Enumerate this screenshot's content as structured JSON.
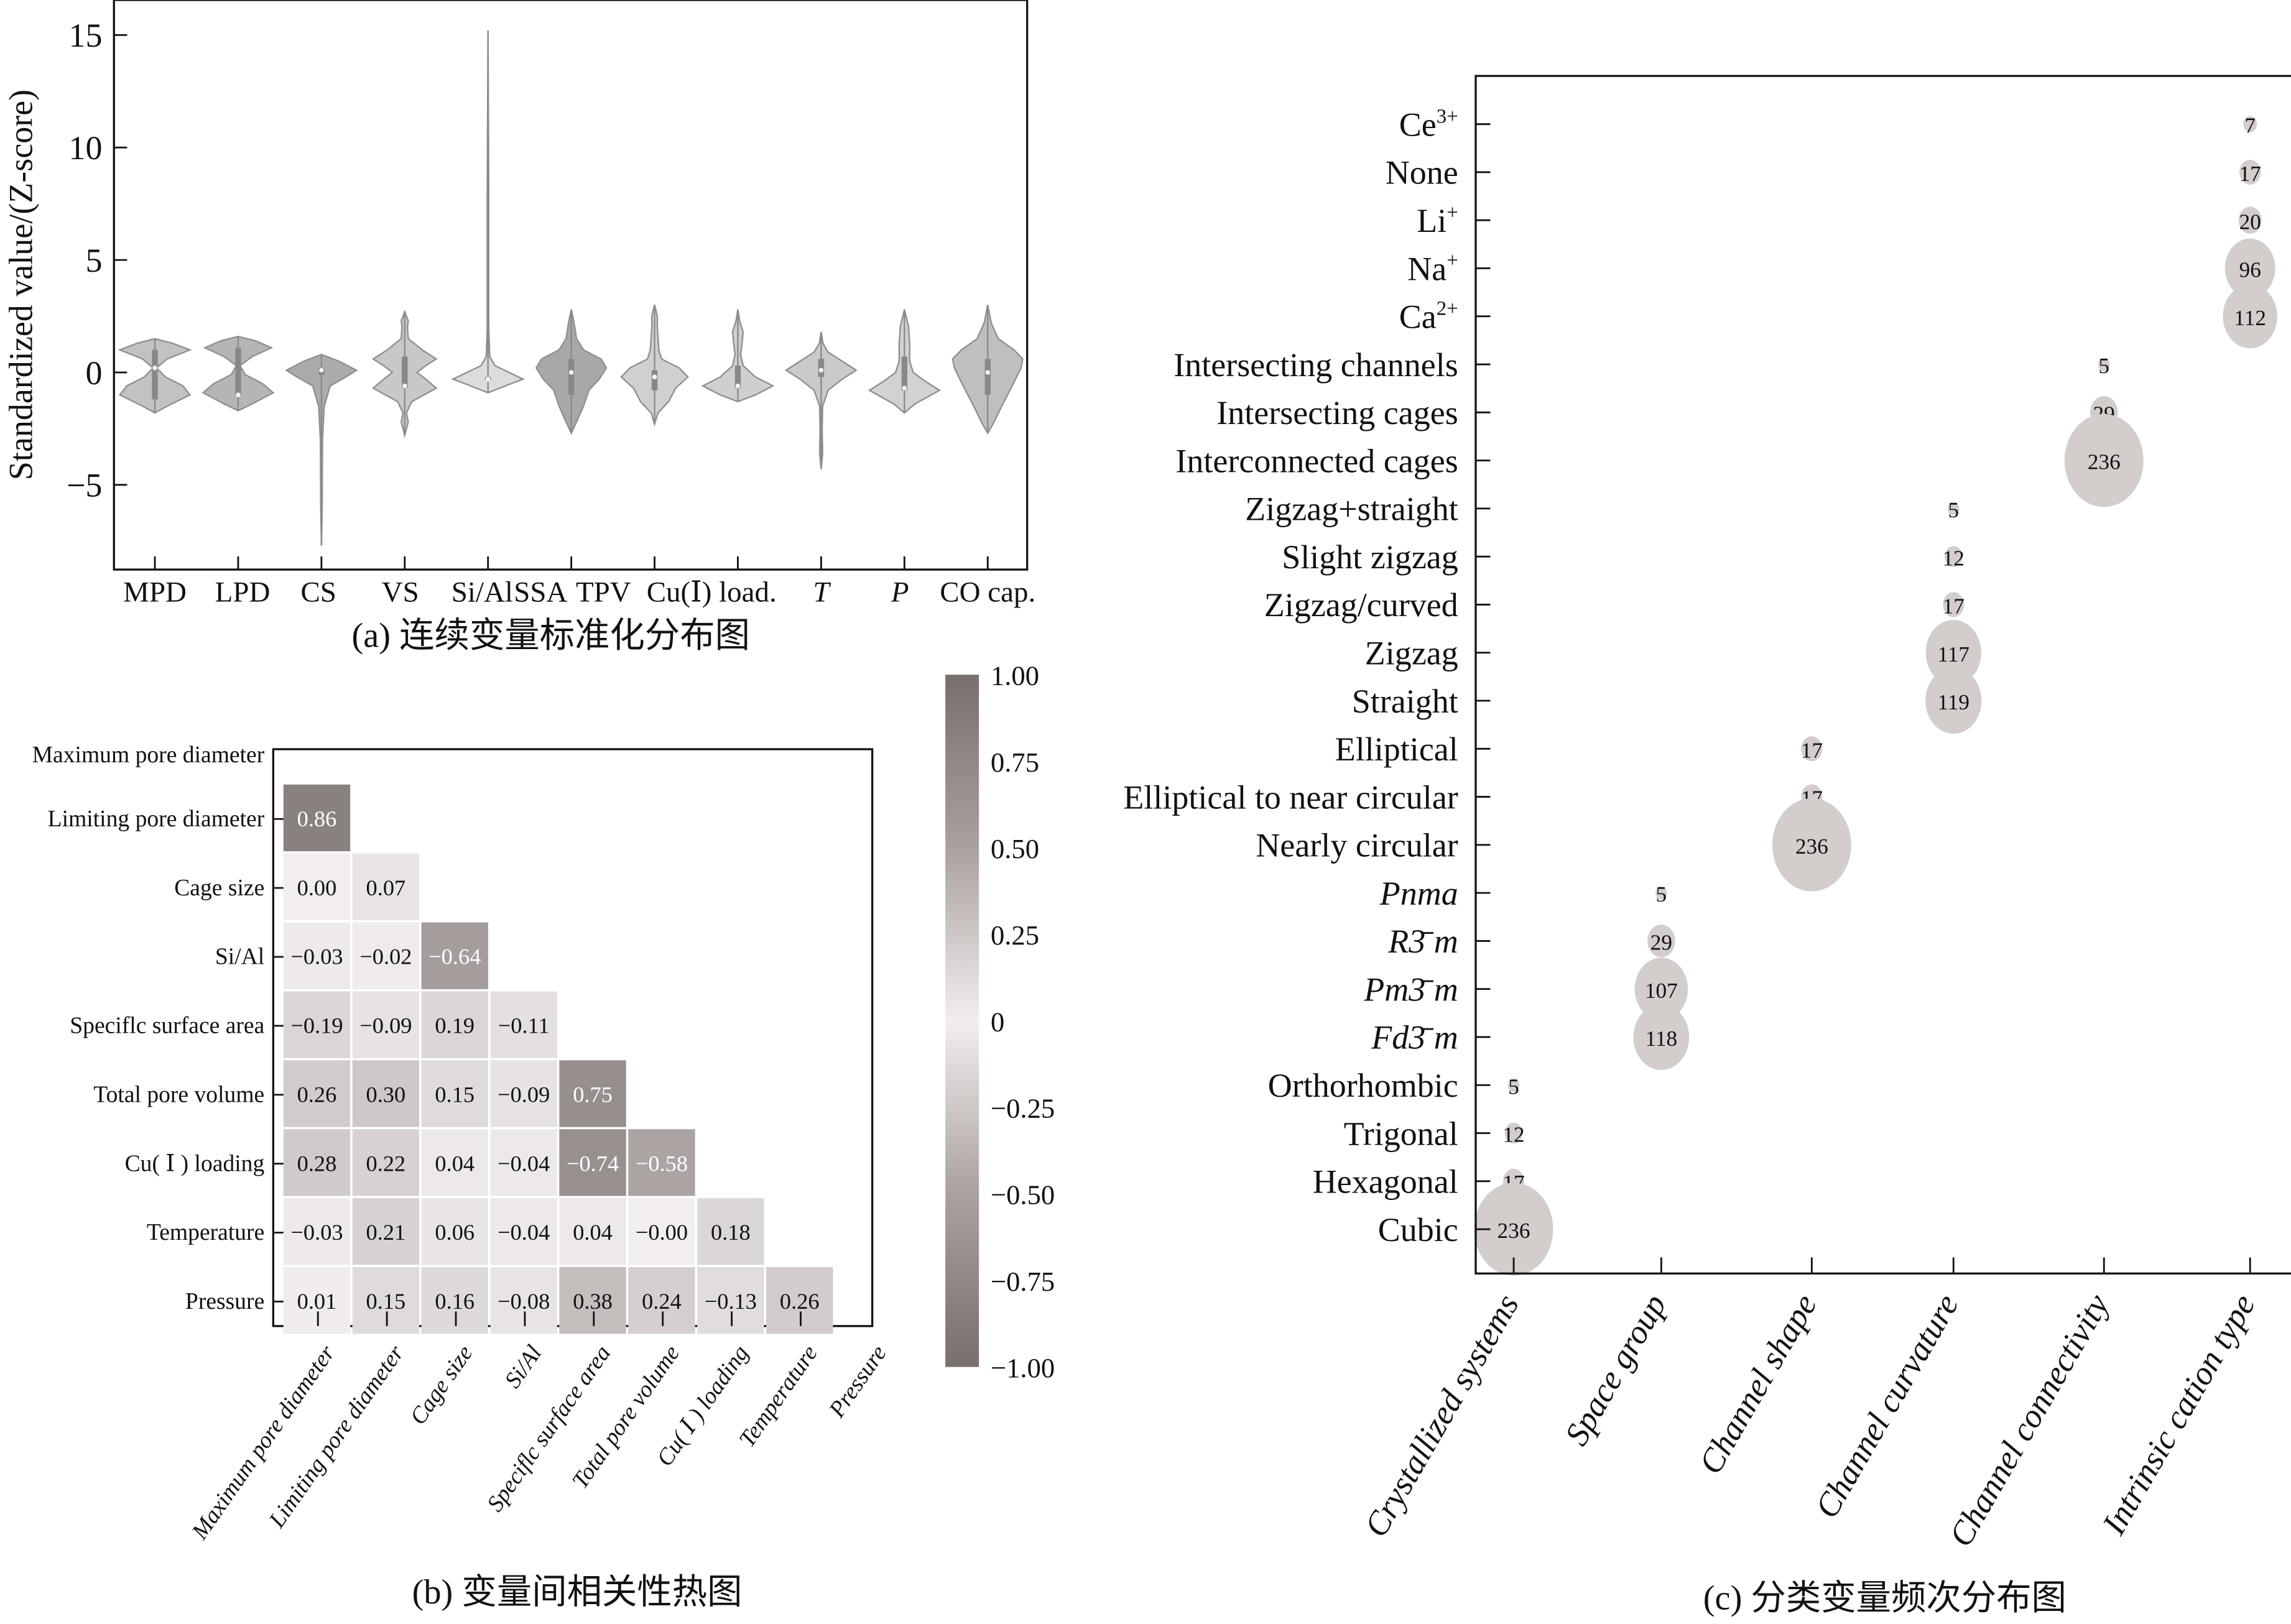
{
  "chart_data": [
    {
      "id": "a",
      "type": "violin",
      "caption": "(a) 连续变量标准化分布图",
      "ylabel": "Standardized value/(Z-score)",
      "ylim": [
        -8.5,
        16.5
      ],
      "yticks": [
        15,
        10,
        5,
        0,
        -5
      ],
      "ytick_labels": [
        "15",
        "10",
        "5",
        "0",
        "−5"
      ],
      "categories": [
        "MPD",
        "LPD",
        "CS",
        "VS",
        "Si/Al",
        "SSA",
        "TPV",
        "Cu(Ⅰ) load.",
        "T",
        "P",
        "CO cap."
      ],
      "categories_italic": [
        false,
        false,
        false,
        false,
        false,
        false,
        false,
        false,
        true,
        true,
        false
      ],
      "fill_colors": [
        "#c2c2c2",
        "#b5b5b5",
        "#ababab",
        "#c8c8c8",
        "#dcdcdc",
        "#a8a8a8",
        "#d0d0d0",
        "#cfcfcf",
        "#cacaca",
        "#d2d2d2",
        "#bfbfbf"
      ],
      "series": [
        {
          "name": "MPD",
          "min": -1.8,
          "max": 1.5,
          "median": 0.2,
          "q1": -1.2,
          "q3": 1.0,
          "profile": [
            [
              -1.8,
              0
            ],
            [
              -1.5,
              0.35
            ],
            [
              -1.0,
              1.0
            ],
            [
              -0.6,
              0.8
            ],
            [
              -0.2,
              0.3
            ],
            [
              0.2,
              0.05
            ],
            [
              0.6,
              0.35
            ],
            [
              1.0,
              1.0
            ],
            [
              1.3,
              0.5
            ],
            [
              1.5,
              0
            ]
          ]
        },
        {
          "name": "LPD",
          "min": -1.7,
          "max": 1.6,
          "median": -1.0,
          "q1": -1.0,
          "q3": 1.1,
          "profile": [
            [
              -1.7,
              0
            ],
            [
              -1.4,
              0.4
            ],
            [
              -0.9,
              1.0
            ],
            [
              -0.5,
              0.7
            ],
            [
              -0.1,
              0.2
            ],
            [
              0.3,
              0.05
            ],
            [
              0.7,
              0.4
            ],
            [
              1.1,
              0.95
            ],
            [
              1.4,
              0.5
            ],
            [
              1.6,
              0
            ]
          ]
        },
        {
          "name": "CS",
          "min": -7.7,
          "max": 0.8,
          "median": 0.1,
          "q1": -0.1,
          "q3": 0.2,
          "profile": [
            [
              -7.7,
              0
            ],
            [
              -6,
              0.02
            ],
            [
              -3,
              0.03
            ],
            [
              -1.5,
              0.08
            ],
            [
              -0.6,
              0.25
            ],
            [
              -0.2,
              0.7
            ],
            [
              0.1,
              1.0
            ],
            [
              0.5,
              0.5
            ],
            [
              0.8,
              0
            ]
          ]
        },
        {
          "name": "VS",
          "min": -2.8,
          "max": 2.7,
          "median": -0.6,
          "q1": -0.7,
          "q3": 0.7,
          "profile": [
            [
              -2.8,
              0
            ],
            [
              -2.2,
              0.1
            ],
            [
              -1.8,
              0.05
            ],
            [
              -1.3,
              0.2
            ],
            [
              -0.7,
              0.9
            ],
            [
              -0.3,
              0.6
            ],
            [
              0.0,
              0.35
            ],
            [
              0.3,
              0.6
            ],
            [
              0.6,
              0.9
            ],
            [
              1.0,
              0.5
            ],
            [
              1.5,
              0.1
            ],
            [
              2.0,
              0.08
            ],
            [
              2.3,
              0.1
            ],
            [
              2.7,
              0
            ]
          ]
        },
        {
          "name": "Si/Al",
          "min": -0.9,
          "max": 15.2,
          "median": -0.3,
          "q1": -0.35,
          "q3": -0.2,
          "profile": [
            [
              -0.9,
              0
            ],
            [
              -0.6,
              0.5
            ],
            [
              -0.3,
              1.0
            ],
            [
              0.0,
              0.6
            ],
            [
              0.3,
              0.2
            ],
            [
              0.7,
              0.05
            ],
            [
              2,
              0.02
            ],
            [
              8,
              0.02
            ],
            [
              15.2,
              0
            ]
          ]
        },
        {
          "name": "SSA",
          "min": -2.7,
          "max": 2.8,
          "median": 0.0,
          "q1": -1.0,
          "q3": 0.6,
          "profile": [
            [
              -2.7,
              0
            ],
            [
              -2.2,
              0.15
            ],
            [
              -1.5,
              0.35
            ],
            [
              -0.8,
              0.5
            ],
            [
              -0.3,
              0.8
            ],
            [
              0.2,
              1.0
            ],
            [
              0.6,
              0.85
            ],
            [
              1.0,
              0.35
            ],
            [
              1.5,
              0.15
            ],
            [
              2.2,
              0.08
            ],
            [
              2.8,
              0
            ]
          ]
        },
        {
          "name": "TPV",
          "min": -2.3,
          "max": 3.0,
          "median": -0.2,
          "q1": -0.8,
          "q3": 0.1,
          "profile": [
            [
              -2.3,
              0
            ],
            [
              -1.8,
              0.1
            ],
            [
              -1.3,
              0.4
            ],
            [
              -0.7,
              0.6
            ],
            [
              -0.2,
              0.95
            ],
            [
              0.2,
              0.7
            ],
            [
              0.6,
              0.2
            ],
            [
              1.0,
              0.12
            ],
            [
              1.5,
              0.1
            ],
            [
              2.0,
              0.08
            ],
            [
              2.5,
              0.08
            ],
            [
              3.0,
              0
            ]
          ]
        },
        {
          "name": "Cu(Ⅰ) load.",
          "min": -1.3,
          "max": 2.8,
          "median": -0.6,
          "q1": -0.7,
          "q3": 0.3,
          "profile": [
            [
              -1.3,
              0
            ],
            [
              -1.0,
              0.5
            ],
            [
              -0.6,
              1.0
            ],
            [
              -0.2,
              0.5
            ],
            [
              0.3,
              0.15
            ],
            [
              0.8,
              0.08
            ],
            [
              1.3,
              0.12
            ],
            [
              1.8,
              0.15
            ],
            [
              2.3,
              0.05
            ],
            [
              2.8,
              0
            ]
          ]
        },
        {
          "name": "T",
          "min": -4.3,
          "max": 1.8,
          "median": 0.1,
          "q1": -0.2,
          "q3": 0.6,
          "profile": [
            [
              -4.3,
              0
            ],
            [
              -3.6,
              0.04
            ],
            [
              -2.5,
              0.03
            ],
            [
              -1.5,
              0.04
            ],
            [
              -0.8,
              0.2
            ],
            [
              -0.3,
              0.6
            ],
            [
              0.1,
              1.0
            ],
            [
              0.5,
              0.6
            ],
            [
              0.9,
              0.2
            ],
            [
              1.3,
              0.05
            ],
            [
              1.8,
              0
            ]
          ]
        },
        {
          "name": "P",
          "min": -1.8,
          "max": 2.8,
          "median": -0.7,
          "q1": -0.8,
          "q3": 0.7,
          "profile": [
            [
              -1.8,
              0
            ],
            [
              -1.4,
              0.3
            ],
            [
              -0.8,
              1.0
            ],
            [
              -0.4,
              0.6
            ],
            [
              0.0,
              0.25
            ],
            [
              0.5,
              0.15
            ],
            [
              1.2,
              0.15
            ],
            [
              2.0,
              0.12
            ],
            [
              2.8,
              0
            ]
          ]
        },
        {
          "name": "CO cap.",
          "min": -2.7,
          "max": 3.0,
          "median": 0.0,
          "q1": -1.0,
          "q3": 0.6,
          "profile": [
            [
              -2.7,
              0
            ],
            [
              -2.3,
              0.15
            ],
            [
              -1.5,
              0.4
            ],
            [
              -0.6,
              0.7
            ],
            [
              0.2,
              0.95
            ],
            [
              0.6,
              1.0
            ],
            [
              1.0,
              0.75
            ],
            [
              1.5,
              0.3
            ],
            [
              2.2,
              0.1
            ],
            [
              3.0,
              0
            ]
          ]
        }
      ]
    },
    {
      "id": "b",
      "type": "heatmap",
      "caption": "(b) 变量间相关性热图",
      "labels": [
        "Maximum pore diameter",
        "Limiting pore diameter",
        "Cage size",
        "Si/Al",
        "Specific surface area",
        "Total pore volume",
        "Cu(Ⅰ) loading",
        "Temperature",
        "Pressure"
      ],
      "ylabels": [
        "Maximum pore diameter",
        "Limiting pore diameter",
        "Cage size",
        "Si/Al",
        "Speciflc surface area",
        "Total pore volume",
        "Cu( Ⅰ ) loading",
        "Temperature",
        "Pressure"
      ],
      "xlabels": [
        "Maximum pore diameter",
        "Limiting pore diameter",
        "Cage size",
        "Si/Al",
        "Speciflc surface area",
        "Total pore volume",
        "Cu( Ⅰ ) loading",
        "Temperature",
        "Pressure"
      ],
      "lower_triangle": [
        [],
        [
          0.86
        ],
        [
          0.0,
          0.07
        ],
        [
          -0.03,
          -0.02,
          -0.64
        ],
        [
          -0.19,
          -0.09,
          0.19,
          -0.11
        ],
        [
          0.26,
          0.3,
          0.15,
          -0.09,
          0.75
        ],
        [
          0.28,
          0.22,
          0.04,
          -0.04,
          -0.74,
          -0.58
        ],
        [
          -0.03,
          0.21,
          0.06,
          -0.04,
          0.04,
          -0.0,
          0.18
        ],
        [
          0.01,
          0.15,
          0.16,
          -0.08,
          0.38,
          0.24,
          -0.13,
          0.26
        ]
      ],
      "cell_labels": [
        [],
        [
          "0.86"
        ],
        [
          "0.00",
          "0.07"
        ],
        [
          "−0.03",
          "−0.02",
          "−0.64"
        ],
        [
          "−0.19",
          "−0.09",
          "0.19",
          "−0.11"
        ],
        [
          "0.26",
          "0.30",
          "0.15",
          "−0.09",
          "0.75"
        ],
        [
          "0.28",
          "0.22",
          "0.04",
          "−0.04",
          "−0.74",
          "−0.58"
        ],
        [
          "−0.03",
          "0.21",
          "0.06",
          "−0.04",
          "0.04",
          "−0.00",
          "0.18"
        ],
        [
          "0.01",
          "0.15",
          "0.16",
          "−0.08",
          "0.38",
          "0.24",
          "−0.13",
          "0.26"
        ]
      ],
      "colorbar": {
        "range": [
          -1.0,
          1.0
        ],
        "ticks": [
          1.0,
          0.75,
          0.5,
          0.25,
          0,
          -0.25,
          -0.5,
          -0.75,
          -1.0
        ],
        "tick_labels": [
          "1.00",
          "0.75",
          "0.50",
          "0.25",
          "0",
          "−0.25",
          "−0.50",
          "−0.75",
          "−1.00"
        ],
        "color_extreme": "#786f6c",
        "color_mid": "#f2eeee"
      }
    },
    {
      "id": "c",
      "type": "scatter",
      "subtype": "bubble",
      "caption": "(c) 分类变量频次分布图",
      "bubble_color": "#d3cdcb",
      "xcategories": [
        "Crystallized systems",
        "Space group",
        "Channel shape",
        "Channel curvature",
        "Channel connectivity",
        "Intrinsic cation type"
      ],
      "ycategories_top_to_bottom": [
        {
          "label": "Ce",
          "sup": "3+",
          "italic": false
        },
        {
          "label": "None",
          "sup": "",
          "italic": false
        },
        {
          "label": "Li",
          "sup": "+",
          "italic": false
        },
        {
          "label": "Na",
          "sup": "+",
          "italic": false
        },
        {
          "label": "Ca",
          "sup": "2+",
          "italic": false
        },
        {
          "label": "Intersecting channels",
          "sup": "",
          "italic": false
        },
        {
          "label": "Intersecting cages",
          "sup": "",
          "italic": false
        },
        {
          "label": "Interconnected cages",
          "sup": "",
          "italic": false
        },
        {
          "label": "Zigzag+straight",
          "sup": "",
          "italic": false
        },
        {
          "label": "Slight zigzag",
          "sup": "",
          "italic": false
        },
        {
          "label": "Zigzag/curved",
          "sup": "",
          "italic": false
        },
        {
          "label": "Zigzag",
          "sup": "",
          "italic": false
        },
        {
          "label": "Straight",
          "sup": "",
          "italic": false
        },
        {
          "label": "Elliptical",
          "sup": "",
          "italic": false
        },
        {
          "label": "Elliptical to near circular",
          "sup": "",
          "italic": false
        },
        {
          "label": "Nearly circular",
          "sup": "",
          "italic": false
        },
        {
          "label": "Pnma",
          "sup": "",
          "italic": true
        },
        {
          "label": "R3̄ m",
          "sup": "",
          "italic": true
        },
        {
          "label": "Pm3̄ m",
          "sup": "",
          "italic": true
        },
        {
          "label": "Fd3̄ m",
          "sup": "",
          "italic": true
        },
        {
          "label": "Orthorhombic",
          "sup": "",
          "italic": false
        },
        {
          "label": "Trigonal",
          "sup": "",
          "italic": false
        },
        {
          "label": "Hexagonal",
          "sup": "",
          "italic": false
        },
        {
          "label": "Cubic",
          "sup": "",
          "italic": false
        }
      ],
      "points": [
        {
          "x": "Intrinsic cation type",
          "y": 0,
          "count": 7
        },
        {
          "x": "Intrinsic cation type",
          "y": 1,
          "count": 17
        },
        {
          "x": "Intrinsic cation type",
          "y": 2,
          "count": 20
        },
        {
          "x": "Intrinsic cation type",
          "y": 3,
          "count": 96
        },
        {
          "x": "Intrinsic cation type",
          "y": 4,
          "count": 112
        },
        {
          "x": "Channel connectivity",
          "y": 5,
          "count": 5
        },
        {
          "x": "Channel connectivity",
          "y": 6,
          "count": 29
        },
        {
          "x": "Channel connectivity",
          "y": 7,
          "count": 236
        },
        {
          "x": "Channel curvature",
          "y": 8,
          "count": 5
        },
        {
          "x": "Channel curvature",
          "y": 9,
          "count": 12
        },
        {
          "x": "Channel curvature",
          "y": 10,
          "count": 17
        },
        {
          "x": "Channel curvature",
          "y": 11,
          "count": 117
        },
        {
          "x": "Channel curvature",
          "y": 12,
          "count": 119
        },
        {
          "x": "Channel shape",
          "y": 13,
          "count": 17
        },
        {
          "x": "Channel shape",
          "y": 14,
          "count": 17
        },
        {
          "x": "Channel shape",
          "y": 15,
          "count": 236
        },
        {
          "x": "Space group",
          "y": 16,
          "count": 5
        },
        {
          "x": "Space group",
          "y": 17,
          "count": 29
        },
        {
          "x": "Space group",
          "y": 18,
          "count": 107
        },
        {
          "x": "Space group",
          "y": 19,
          "count": 118
        },
        {
          "x": "Crystallized systems",
          "y": 20,
          "count": 5
        },
        {
          "x": "Crystallized systems",
          "y": 21,
          "count": 12
        },
        {
          "x": "Crystallized systems",
          "y": 22,
          "count": 17
        },
        {
          "x": "Crystallized systems",
          "y": 23,
          "count": 236
        }
      ]
    }
  ]
}
